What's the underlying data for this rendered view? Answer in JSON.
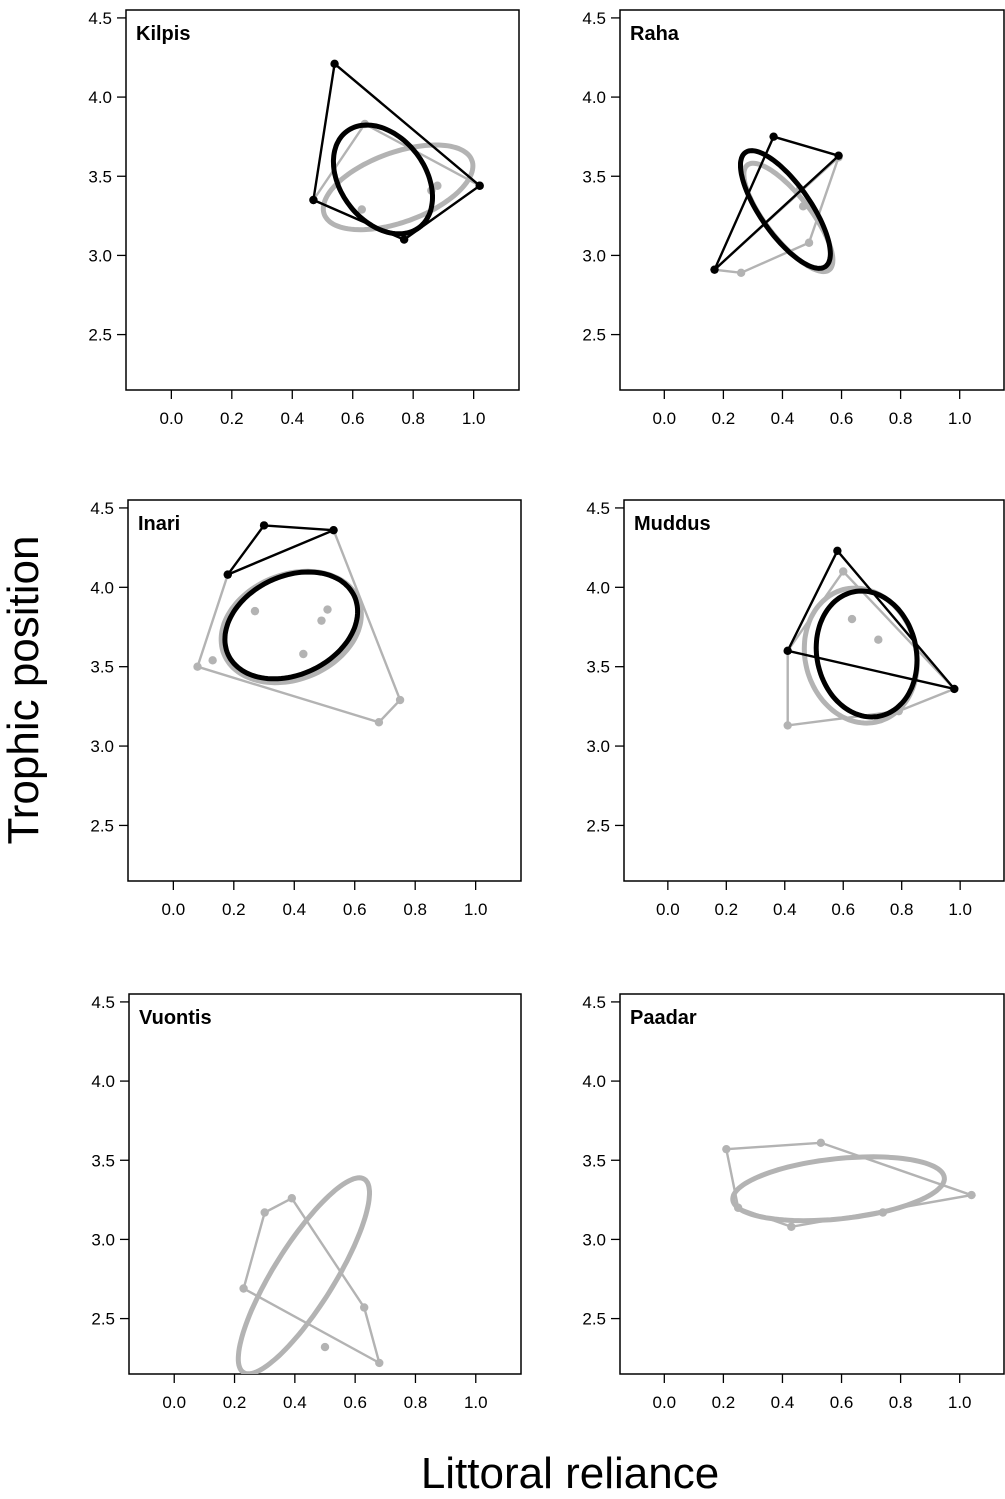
{
  "figure": {
    "xlabel": "Littoral reliance",
    "ylabel": "Trophic position"
  },
  "colors": {
    "black_series": "#000000",
    "grey_series": "#b3b3b3"
  },
  "chart_data": [
    {
      "type": "scatter",
      "title": "Kilpis",
      "xlim": [
        -0.15,
        1.15
      ],
      "ylim": [
        2.15,
        4.55
      ],
      "xticks": [
        "0.0",
        "0.2",
        "0.4",
        "0.6",
        "0.8",
        "1.0"
      ],
      "yticks": [
        "2.5",
        "3.0",
        "3.5",
        "4.0",
        "4.5"
      ],
      "series": [
        {
          "color": "#000000",
          "points": [
            [
              0.54,
              4.21
            ],
            [
              1.02,
              3.44
            ],
            [
              0.77,
              3.1
            ],
            [
              0.47,
              3.35
            ]
          ],
          "hull": [
            [
              0.54,
              4.21
            ],
            [
              1.02,
              3.44
            ],
            [
              0.77,
              3.1
            ],
            [
              0.47,
              3.35
            ]
          ],
          "ellipse": {
            "cx": 0.7,
            "cy": 3.48,
            "rx": 0.14,
            "ry": 0.38,
            "angle": -37
          }
        },
        {
          "color": "#b3b3b3",
          "points": [
            [
              0.64,
              3.83
            ],
            [
              1.02,
              3.44
            ],
            [
              0.77,
              3.1
            ],
            [
              0.47,
              3.35
            ],
            [
              0.63,
              3.29
            ],
            [
              0.86,
              3.41
            ],
            [
              0.88,
              3.44
            ]
          ],
          "hull": [
            [
              0.64,
              3.83
            ],
            [
              1.02,
              3.44
            ],
            [
              0.77,
              3.1
            ],
            [
              0.47,
              3.35
            ]
          ],
          "ellipse": {
            "cx": 0.75,
            "cy": 3.43,
            "rx": 0.26,
            "ry": 0.22,
            "angle": -20
          }
        }
      ]
    },
    {
      "type": "scatter",
      "title": "Raha",
      "xlim": [
        -0.15,
        1.15
      ],
      "ylim": [
        2.15,
        4.55
      ],
      "xticks": [
        "0.0",
        "0.2",
        "0.4",
        "0.6",
        "0.8",
        "1.0"
      ],
      "yticks": [
        "2.5",
        "3.0",
        "3.5",
        "4.0",
        "4.5"
      ],
      "series": [
        {
          "color": "#000000",
          "points": [
            [
              0.37,
              3.75
            ],
            [
              0.59,
              3.63
            ],
            [
              0.17,
              2.91
            ]
          ],
          "hull": [
            [
              0.37,
              3.75
            ],
            [
              0.59,
              3.63
            ],
            [
              0.17,
              2.91
            ]
          ],
          "ellipse": {
            "cx": 0.41,
            "cy": 3.29,
            "rx": 0.085,
            "ry": 0.44,
            "angle": -35
          }
        },
        {
          "color": "#b3b3b3",
          "points": [
            [
              0.59,
              3.62
            ],
            [
              0.17,
              2.91
            ],
            [
              0.46,
              3.42
            ],
            [
              0.47,
              3.31
            ],
            [
              0.49,
              3.08
            ],
            [
              0.26,
              2.89
            ]
          ],
          "hull": [
            [
              0.59,
              3.62
            ],
            [
              0.49,
              3.08
            ],
            [
              0.26,
              2.89
            ],
            [
              0.17,
              2.91
            ]
          ],
          "ellipse": {
            "cx": 0.42,
            "cy": 3.24,
            "rx": 0.075,
            "ry": 0.42,
            "angle": -38
          }
        }
      ]
    },
    {
      "type": "scatter",
      "title": "Inari",
      "xlim": [
        -0.15,
        1.15
      ],
      "ylim": [
        2.15,
        4.55
      ],
      "xticks": [
        "0.0",
        "0.2",
        "0.4",
        "0.6",
        "0.8",
        "1.0"
      ],
      "yticks": [
        "2.5",
        "3.0",
        "3.5",
        "4.0",
        "4.5"
      ],
      "series": [
        {
          "color": "#000000",
          "points": [
            [
              0.3,
              4.39
            ],
            [
              0.53,
              4.36
            ],
            [
              0.18,
              4.08
            ]
          ],
          "hull": [
            [
              0.3,
              4.39
            ],
            [
              0.53,
              4.36
            ],
            [
              0.18,
              4.08
            ]
          ],
          "ellipse": {
            "cx": 0.39,
            "cy": 3.76,
            "rx": 0.23,
            "ry": 0.31,
            "angle": -25
          }
        },
        {
          "color": "#b3b3b3",
          "points": [
            [
              0.53,
              4.36
            ],
            [
              0.18,
              4.08
            ],
            [
              0.08,
              3.5
            ],
            [
              0.13,
              3.54
            ],
            [
              0.27,
              3.85
            ],
            [
              0.43,
              3.58
            ],
            [
              0.49,
              3.79
            ],
            [
              0.51,
              3.86
            ],
            [
              0.68,
              3.15
            ],
            [
              0.75,
              3.29
            ]
          ],
          "hull": [
            [
              0.53,
              4.36
            ],
            [
              0.75,
              3.29
            ],
            [
              0.68,
              3.15
            ],
            [
              0.08,
              3.5
            ],
            [
              0.18,
              4.08
            ]
          ],
          "ellipse": {
            "cx": 0.39,
            "cy": 3.75,
            "rx": 0.24,
            "ry": 0.33,
            "angle": -22
          }
        }
      ]
    },
    {
      "type": "scatter",
      "title": "Muddus",
      "xlim": [
        -0.15,
        1.15
      ],
      "ylim": [
        2.15,
        4.55
      ],
      "xticks": [
        "0.0",
        "0.2",
        "0.4",
        "0.6",
        "0.8",
        "1.0"
      ],
      "yticks": [
        "2.5",
        "3.0",
        "3.5",
        "4.0",
        "4.5"
      ],
      "series": [
        {
          "color": "#000000",
          "points": [
            [
              0.58,
              4.23
            ],
            [
              0.98,
              3.36
            ],
            [
              0.41,
              3.6
            ]
          ],
          "hull": [
            [
              0.58,
              4.23
            ],
            [
              0.98,
              3.36
            ],
            [
              0.41,
              3.6
            ]
          ],
          "ellipse": {
            "cx": 0.68,
            "cy": 3.58,
            "rx": 0.17,
            "ry": 0.4,
            "angle": -12
          }
        },
        {
          "color": "#b3b3b3",
          "points": [
            [
              0.6,
              4.1
            ],
            [
              0.98,
              3.36
            ],
            [
              0.41,
              3.6
            ],
            [
              0.41,
              3.13
            ],
            [
              0.63,
              3.8
            ],
            [
              0.72,
              3.67
            ],
            [
              0.72,
              3.17
            ],
            [
              0.79,
              3.22
            ]
          ],
          "hull": [
            [
              0.6,
              4.1
            ],
            [
              0.98,
              3.36
            ],
            [
              0.79,
              3.22
            ],
            [
              0.41,
              3.13
            ],
            [
              0.41,
              3.6
            ]
          ],
          "ellipse": {
            "cx": 0.66,
            "cy": 3.57,
            "rx": 0.19,
            "ry": 0.43,
            "angle": -15
          }
        }
      ]
    },
    {
      "type": "scatter",
      "title": "Vuontis",
      "xlim": [
        -0.15,
        1.15
      ],
      "ylim": [
        2.15,
        4.55
      ],
      "xticks": [
        "0.0",
        "0.2",
        "0.4",
        "0.6",
        "0.8",
        "1.0"
      ],
      "yticks": [
        "2.5",
        "3.0",
        "3.5",
        "4.0",
        "4.5"
      ],
      "series": [
        {
          "color": "#b3b3b3",
          "points": [
            [
              0.39,
              3.26
            ],
            [
              0.3,
              3.17
            ],
            [
              0.23,
              2.69
            ],
            [
              0.63,
              2.57
            ],
            [
              0.68,
              2.22
            ],
            [
              0.5,
              2.32
            ]
          ],
          "hull": [
            [
              0.39,
              3.26
            ],
            [
              0.63,
              2.57
            ],
            [
              0.68,
              2.22
            ],
            [
              0.23,
              2.69
            ],
            [
              0.3,
              3.17
            ]
          ],
          "ellipse": {
            "cx": 0.43,
            "cy": 2.77,
            "rx": 0.1,
            "ry": 0.72,
            "angle": 32
          }
        }
      ]
    },
    {
      "type": "scatter",
      "title": "Paadar",
      "xlim": [
        -0.15,
        1.15
      ],
      "ylim": [
        2.15,
        4.55
      ],
      "xticks": [
        "0.0",
        "0.2",
        "0.4",
        "0.6",
        "0.8",
        "1.0"
      ],
      "yticks": [
        "2.5",
        "3.0",
        "3.5",
        "4.0",
        "4.5"
      ],
      "series": [
        {
          "color": "#b3b3b3",
          "points": [
            [
              0.21,
              3.57
            ],
            [
              0.53,
              3.61
            ],
            [
              1.04,
              3.28
            ],
            [
              0.25,
              3.2
            ],
            [
              0.43,
              3.08
            ],
            [
              0.74,
              3.17
            ]
          ],
          "hull": [
            [
              0.21,
              3.57
            ],
            [
              0.53,
              3.61
            ],
            [
              1.04,
              3.28
            ],
            [
              0.43,
              3.08
            ],
            [
              0.25,
              3.2
            ]
          ],
          "ellipse": {
            "cx": 0.59,
            "cy": 3.32,
            "rx": 0.36,
            "ry": 0.19,
            "angle": -6
          }
        }
      ]
    }
  ]
}
